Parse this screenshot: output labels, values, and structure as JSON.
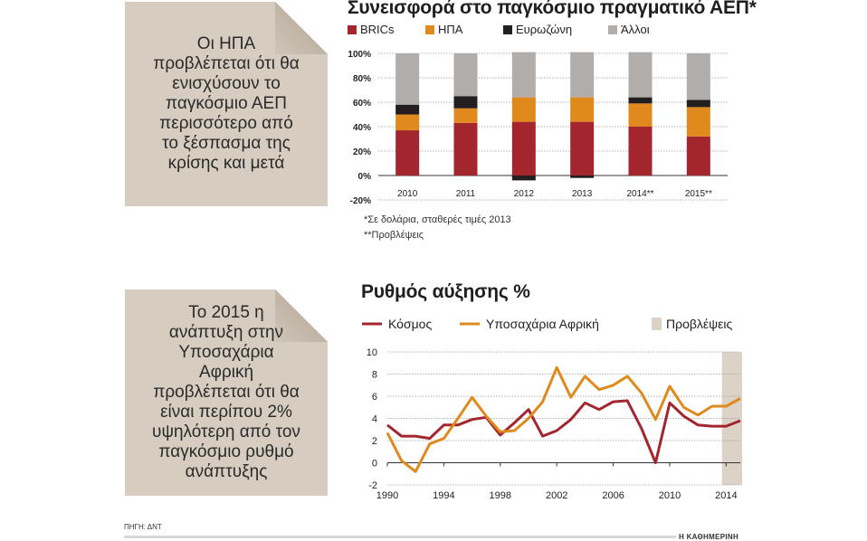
{
  "notes": [
    {
      "text": "Οι ΗΠΑ προβλέπεται ότι θα ενισχύσουν το παγκόσμιο ΑΕΠ περισσότερο από το ξέσπασμα της κρίσης και μετά"
    },
    {
      "text": "Το 2015 η ανάπτυξη στην Υποσαχάρια Αφρική προβλέπεται ότι θα είναι περίπου 2% υψηλότερη από τον παγκόσμιο ρυθμό ανάπτυξης"
    }
  ],
  "footnotes": {
    "real_gdp": "*Σε δολάρια, σταθερές τιμές 2013",
    "forecasts": "**Προβλέψεις"
  },
  "source": "ΠΗΓΗ: ΔΝΤ",
  "brand": "Η ΚΑΘΗΜΕΡΙΝΗ",
  "chart_data": [
    {
      "type": "bar",
      "stacked": true,
      "title": "Συνεισφορά στο παγκόσμιο πραγματικό ΑΕΠ*",
      "categories": [
        "2010",
        "2011",
        "2012",
        "2013",
        "2014**",
        "2015**"
      ],
      "series": [
        {
          "name": "BRICs",
          "color": "#a3262e",
          "values": [
            37,
            43,
            44,
            44,
            40,
            32
          ]
        },
        {
          "name": "ΗΠΑ",
          "color": "#e08a1e",
          "values": [
            13,
            12,
            20,
            20,
            19,
            24
          ]
        },
        {
          "name": "Ευρωζώνη",
          "color": "#231f20",
          "values": [
            8,
            10,
            -4,
            -2,
            5,
            6
          ]
        },
        {
          "name": "Άλλοι",
          "color": "#b1adaa",
          "values": [
            42,
            35,
            37,
            37,
            37,
            38
          ]
        }
      ],
      "yticks": [
        "100%",
        "80%",
        "60%",
        "40%",
        "20%",
        "0%",
        "-20%"
      ],
      "ylim": [
        -20,
        100
      ],
      "grid": true,
      "legend": "top"
    },
    {
      "type": "line",
      "title": "Ρυθμός αύξησης %",
      "x": [
        1990,
        1991,
        1992,
        1993,
        1994,
        1995,
        1996,
        1997,
        1998,
        1999,
        2000,
        2001,
        2002,
        2003,
        2004,
        2005,
        2006,
        2007,
        2008,
        2009,
        2010,
        2011,
        2012,
        2013,
        2014,
        2015
      ],
      "series": [
        {
          "name": "Κόσμος",
          "color": "#a3262e",
          "values": [
            3.4,
            2.4,
            2.4,
            2.2,
            3.4,
            3.4,
            3.9,
            4.1,
            2.5,
            3.6,
            4.8,
            2.4,
            2.9,
            3.9,
            5.4,
            4.8,
            5.5,
            5.6,
            3.1,
            0.0,
            5.4,
            4.2,
            3.4,
            3.3,
            3.3,
            3.8
          ]
        },
        {
          "name": "Υποσαχάρια Αφρική",
          "color": "#e08a1e",
          "values": [
            2.7,
            0.2,
            -0.8,
            1.7,
            2.2,
            4.0,
            5.9,
            4.2,
            2.8,
            2.9,
            4.0,
            5.5,
            8.6,
            5.9,
            7.8,
            6.6,
            7.0,
            7.8,
            6.3,
            3.9,
            6.9,
            5.0,
            4.3,
            5.1,
            5.1,
            5.8
          ]
        }
      ],
      "forecast": {
        "name": "Προβλέψεις",
        "color": "#ddd2c7",
        "from": 2014,
        "to": 2015
      },
      "xticks": [
        "1990",
        "1994",
        "1998",
        "2002",
        "2006",
        "2010",
        "2014"
      ],
      "yticks": [
        "10",
        "8",
        "6",
        "4",
        "2",
        "0",
        "-2"
      ],
      "xlim": [
        1990,
        2015
      ],
      "ylim": [
        -2,
        10
      ],
      "grid": true,
      "legend": "top"
    }
  ]
}
